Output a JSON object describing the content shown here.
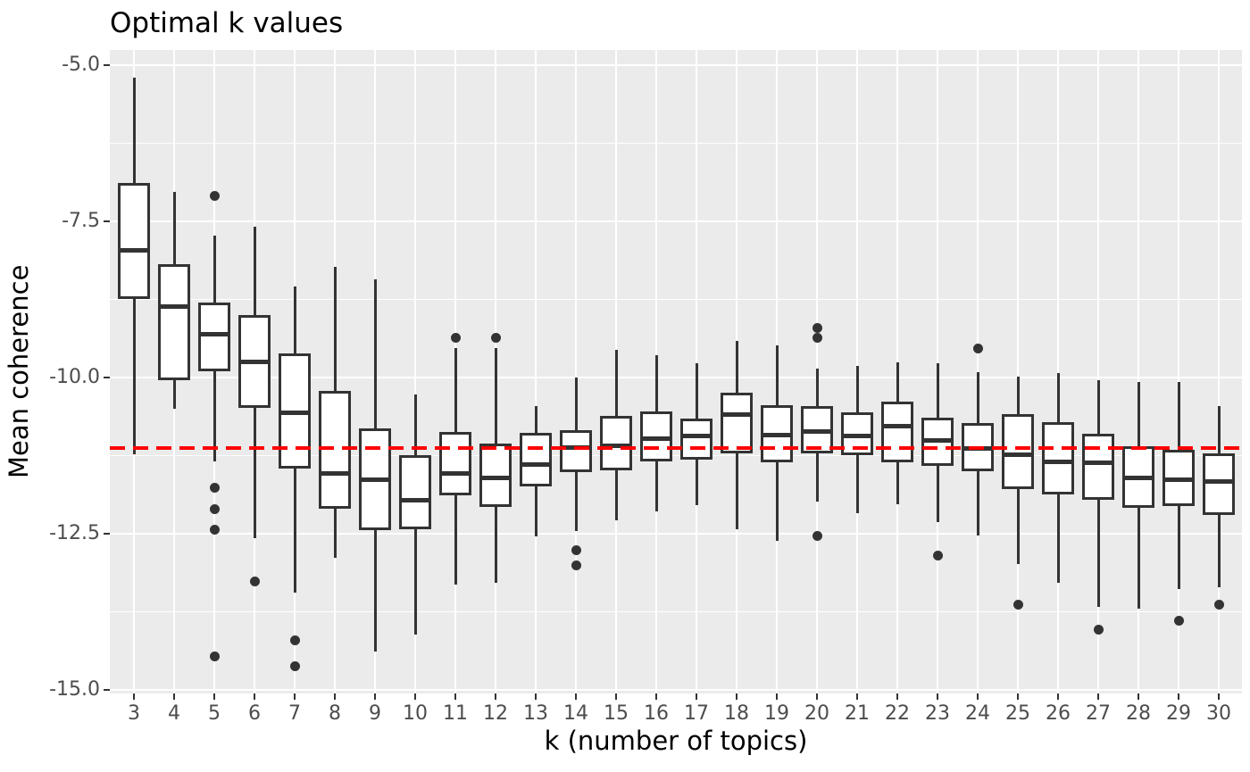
{
  "chart_data": {
    "type": "boxplot",
    "title": "Optimal k values",
    "xlabel": "k (number of topics)",
    "ylabel": "Mean coherence",
    "ylim": [
      -15.05,
      -4.75
    ],
    "grid": true,
    "legend": false,
    "y_ticks": [
      {
        "value": -5.0,
        "label": "-5.0"
      },
      {
        "value": -7.5,
        "label": "-7.5"
      },
      {
        "value": -10.0,
        "label": "-10.0"
      },
      {
        "value": -12.5,
        "label": "-12.5"
      },
      {
        "value": -15.0,
        "label": "-15.0"
      }
    ],
    "y_minor_ticks": [
      -6.25,
      -8.75,
      -11.25,
      -13.75
    ],
    "reference_line": {
      "value": -11.13,
      "color": "#ff0000",
      "style": "dashed"
    },
    "categories": [
      "3",
      "4",
      "5",
      "6",
      "7",
      "8",
      "9",
      "10",
      "11",
      "12",
      "13",
      "14",
      "15",
      "16",
      "17",
      "18",
      "19",
      "20",
      "21",
      "22",
      "23",
      "24",
      "25",
      "26",
      "27",
      "28",
      "29",
      "30"
    ],
    "series": [
      {
        "k": "3",
        "whisker_low": -11.23,
        "q1": -8.74,
        "median": -7.96,
        "q3": -6.89,
        "whisker_high": -5.2,
        "outliers": []
      },
      {
        "k": "4",
        "whisker_low": -10.5,
        "q1": -10.05,
        "median": -8.87,
        "q3": -8.19,
        "whisker_high": -7.03,
        "outliers": []
      },
      {
        "k": "5",
        "whisker_low": -11.35,
        "q1": -9.9,
        "median": -9.31,
        "q3": -8.8,
        "whisker_high": -7.73,
        "outliers": [
          -7.09,
          -11.76,
          -12.1,
          -12.44,
          -14.46
        ]
      },
      {
        "k": "6",
        "whisker_low": -12.57,
        "q1": -10.48,
        "median": -9.75,
        "q3": -9.0,
        "whisker_high": -7.59,
        "outliers": [
          -13.27
        ]
      },
      {
        "k": "7",
        "whisker_low": -13.44,
        "q1": -11.46,
        "median": -10.57,
        "q3": -9.62,
        "whisker_high": -8.54,
        "outliers": [
          -14.21,
          -14.62
        ]
      },
      {
        "k": "8",
        "whisker_low": -12.89,
        "q1": -12.1,
        "median": -11.53,
        "q3": -10.22,
        "whisker_high": -8.23,
        "outliers": []
      },
      {
        "k": "9",
        "whisker_low": -14.39,
        "q1": -12.44,
        "median": -11.63,
        "q3": -10.81,
        "whisker_high": -8.43,
        "outliers": []
      },
      {
        "k": "10",
        "whisker_low": -14.12,
        "q1": -12.43,
        "median": -11.97,
        "q3": -11.24,
        "whisker_high": -10.27,
        "outliers": []
      },
      {
        "k": "11",
        "whisker_low": -13.31,
        "q1": -11.89,
        "median": -11.53,
        "q3": -10.87,
        "whisker_high": -9.53,
        "outliers": [
          -9.36
        ]
      },
      {
        "k": "12",
        "whisker_low": -13.28,
        "q1": -12.07,
        "median": -11.6,
        "q3": -11.05,
        "whisker_high": -9.53,
        "outliers": [
          -9.36
        ]
      },
      {
        "k": "13",
        "whisker_low": -12.55,
        "q1": -11.75,
        "median": -11.39,
        "q3": -10.89,
        "whisker_high": -10.46,
        "outliers": []
      },
      {
        "k": "14",
        "whisker_low": -12.45,
        "q1": -11.51,
        "median": -11.12,
        "q3": -10.84,
        "whisker_high": -10.0,
        "outliers": [
          -12.76,
          -13.01
        ]
      },
      {
        "k": "15",
        "whisker_low": -12.29,
        "q1": -11.48,
        "median": -11.09,
        "q3": -10.62,
        "whisker_high": -9.56,
        "outliers": []
      },
      {
        "k": "16",
        "whisker_low": -12.14,
        "q1": -11.34,
        "median": -10.98,
        "q3": -10.54,
        "whisker_high": -9.64,
        "outliers": []
      },
      {
        "k": "17",
        "whisker_low": -12.05,
        "q1": -11.31,
        "median": -10.93,
        "q3": -10.66,
        "whisker_high": -9.77,
        "outliers": []
      },
      {
        "k": "18",
        "whisker_low": -12.43,
        "q1": -11.22,
        "median": -10.59,
        "q3": -10.24,
        "whisker_high": -9.41,
        "outliers": []
      },
      {
        "k": "19",
        "whisker_low": -12.62,
        "q1": -11.36,
        "median": -10.92,
        "q3": -10.44,
        "whisker_high": -9.48,
        "outliers": []
      },
      {
        "k": "20",
        "whisker_low": -11.98,
        "q1": -11.22,
        "median": -10.86,
        "q3": -10.46,
        "whisker_high": -9.86,
        "outliers": [
          -9.21,
          -9.36,
          -12.53
        ]
      },
      {
        "k": "21",
        "whisker_low": -12.17,
        "q1": -11.24,
        "median": -10.93,
        "q3": -10.56,
        "whisker_high": -9.81,
        "outliers": []
      },
      {
        "k": "22",
        "whisker_low": -12.03,
        "q1": -11.36,
        "median": -10.78,
        "q3": -10.39,
        "whisker_high": -9.76,
        "outliers": []
      },
      {
        "k": "23",
        "whisker_low": -12.31,
        "q1": -11.42,
        "median": -11.0,
        "q3": -10.64,
        "whisker_high": -9.77,
        "outliers": [
          -12.85
        ]
      },
      {
        "k": "24",
        "whisker_low": -12.53,
        "q1": -11.5,
        "median": -11.14,
        "q3": -10.73,
        "whisker_high": -9.92,
        "outliers": [
          -9.54
        ]
      },
      {
        "k": "25",
        "whisker_low": -12.98,
        "q1": -11.79,
        "median": -11.24,
        "q3": -10.59,
        "whisker_high": -9.98,
        "outliers": [
          -13.64
        ]
      },
      {
        "k": "26",
        "whisker_low": -13.29,
        "q1": -11.87,
        "median": -11.35,
        "q3": -10.71,
        "whisker_high": -9.93,
        "outliers": []
      },
      {
        "k": "27",
        "whisker_low": -13.67,
        "q1": -11.96,
        "median": -11.37,
        "q3": -10.9,
        "whisker_high": -10.04,
        "outliers": [
          -14.03
        ]
      },
      {
        "k": "28",
        "whisker_low": -13.7,
        "q1": -12.09,
        "median": -11.6,
        "q3": -11.1,
        "whisker_high": -10.07,
        "outliers": []
      },
      {
        "k": "29",
        "whisker_low": -13.39,
        "q1": -12.05,
        "median": -11.63,
        "q3": -11.15,
        "whisker_high": -10.07,
        "outliers": [
          -13.89
        ]
      },
      {
        "k": "30",
        "whisker_low": -13.36,
        "q1": -12.2,
        "median": -11.66,
        "q3": -11.21,
        "whisker_high": -10.46,
        "outliers": [
          -13.64
        ]
      }
    ],
    "colors": {
      "panel_background": "#ebebeb",
      "gridline": "#ffffff",
      "box_fill": "#ffffff",
      "box_stroke": "#333333",
      "outlier": "#333333",
      "reference_line": "#ff0000",
      "tick_label": "#4d4d4d",
      "title_text": "#000000"
    }
  }
}
